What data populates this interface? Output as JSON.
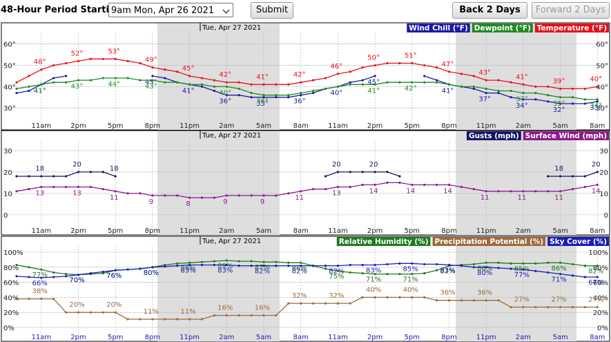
{
  "header": {
    "period_label": "48-Hour Period Starting:",
    "period_value": "9am Mon, Apr 26 2021",
    "submit": "Submit",
    "back": "Back 2 Days",
    "forward": "Forward 2 Days"
  },
  "chart_data": [
    {
      "type": "line",
      "date_label": "Tue, Apr 27 2021",
      "categories": [
        null,
        null,
        "11am",
        null,
        null,
        "2pm",
        null,
        null,
        "5pm",
        null,
        null,
        "8pm",
        null,
        null,
        "11pm",
        null,
        null,
        "2am",
        null,
        null,
        "5am",
        null,
        null,
        "8am",
        null,
        null,
        "11am",
        null,
        null,
        "2pm",
        null,
        null,
        "5pm",
        null,
        null,
        "8pm",
        null,
        null,
        "11pm",
        null,
        null,
        "2am",
        null,
        null,
        "5am",
        null,
        null,
        "8am"
      ],
      "ylim": [
        20,
        69
      ],
      "yticks": [
        {
          "value": 30,
          "label": "30°"
        },
        {
          "value": 40,
          "label": "40°"
        },
        {
          "value": 50,
          "label": "50°"
        },
        {
          "value": 60,
          "label": "60°"
        }
      ],
      "series": [
        {
          "name": "Wind Chill (°F)",
          "color": "#1a1aa6",
          "values": [
            37,
            38,
            41,
            44,
            45,
            null,
            null,
            null,
            null,
            null,
            null,
            45,
            44,
            42,
            41,
            40,
            38,
            36,
            36,
            35,
            35,
            35,
            35,
            36,
            37,
            39,
            40,
            42,
            43,
            45,
            null,
            null,
            null,
            45,
            43,
            41,
            40,
            39,
            37,
            37,
            35,
            34,
            34,
            33,
            32,
            32,
            32,
            33
          ],
          "value_labels": [
            null,
            null,
            "41°",
            null,
            null,
            null,
            null,
            null,
            null,
            null,
            null,
            "45°",
            null,
            null,
            "41°",
            null,
            null,
            "36°",
            null,
            null,
            "35°",
            null,
            null,
            "36°",
            null,
            null,
            "40°",
            null,
            null,
            "45°",
            null,
            null,
            null,
            null,
            null,
            "41°",
            null,
            null,
            "37°",
            null,
            null,
            "34°",
            null,
            null,
            "32°",
            null,
            null,
            "33°"
          ]
        },
        {
          "name": "Dewpoint (°F)",
          "color": "#1f8a1f",
          "values": [
            39,
            40,
            41,
            42,
            42,
            43,
            43,
            44,
            44,
            44,
            43,
            43,
            42,
            42,
            41,
            41,
            40,
            40,
            39,
            37,
            36,
            36,
            36,
            37,
            38,
            39,
            40,
            41,
            41,
            41,
            42,
            42,
            42,
            42,
            42,
            41,
            40,
            40,
            39,
            38,
            38,
            37,
            37,
            36,
            35,
            35,
            34,
            34
          ],
          "value_labels": [
            null,
            null,
            "41°",
            null,
            null,
            "43°",
            null,
            null,
            "44°",
            null,
            null,
            "43°",
            null,
            null,
            null,
            null,
            null,
            "40°",
            null,
            null,
            "36°",
            null,
            null,
            null,
            null,
            null,
            null,
            null,
            null,
            "41°",
            null,
            null,
            "42°",
            null,
            null,
            null,
            null,
            null,
            null,
            null,
            null,
            "37°",
            null,
            null,
            "35°",
            null,
            null,
            "34°"
          ]
        },
        {
          "name": "Temperature (°F)",
          "color": "#e8101a",
          "values": [
            42,
            45,
            48,
            50,
            51,
            52,
            53,
            53,
            53,
            52,
            51,
            49,
            48,
            47,
            45,
            44,
            43,
            42,
            42,
            41,
            41,
            41,
            41,
            42,
            43,
            44,
            46,
            47,
            49,
            50,
            51,
            51,
            51,
            50,
            49,
            47,
            46,
            45,
            43,
            43,
            42,
            41,
            40,
            40,
            39,
            39,
            39,
            40
          ],
          "value_labels": [
            null,
            null,
            "48°",
            null,
            null,
            "52°",
            null,
            null,
            "53°",
            null,
            null,
            "49°",
            null,
            null,
            "45°",
            null,
            null,
            "42°",
            null,
            null,
            "41°",
            null,
            null,
            "42°",
            null,
            null,
            "46°",
            null,
            null,
            "50°",
            null,
            null,
            "51°",
            null,
            null,
            "47°",
            null,
            null,
            "43°",
            null,
            null,
            "41°",
            null,
            null,
            "39°",
            null,
            null,
            "40°"
          ]
        }
      ]
    },
    {
      "type": "line",
      "date_label": "Tue, Apr 27 2021",
      "categories": [
        null,
        null,
        "11am",
        null,
        null,
        "2pm",
        null,
        null,
        "5pm",
        null,
        null,
        "8pm",
        null,
        null,
        "11pm",
        null,
        null,
        "2am",
        null,
        null,
        "5am",
        null,
        null,
        "8am",
        null,
        null,
        "11am",
        null,
        null,
        "2pm",
        null,
        null,
        "5pm",
        null,
        null,
        "8pm",
        null,
        null,
        "11pm",
        null,
        null,
        "2am",
        null,
        null,
        "5am",
        null,
        null,
        "8am"
      ],
      "ylim": [
        -9.4,
        37.4
      ],
      "yticks": [
        0,
        10,
        20,
        30
      ],
      "series": [
        {
          "name": "Gusts (mph)",
          "color": "#141466",
          "values": [
            18,
            18,
            18,
            18,
            18,
            20,
            20,
            20,
            18,
            null,
            null,
            null,
            null,
            null,
            null,
            null,
            null,
            null,
            null,
            null,
            null,
            null,
            null,
            null,
            null,
            18,
            20,
            20,
            20,
            20,
            20,
            18,
            null,
            null,
            null,
            null,
            null,
            null,
            null,
            null,
            null,
            null,
            null,
            18,
            18,
            18,
            18,
            20
          ]
        },
        {
          "name": "Surface Wind (mph)",
          "color": "#8b1a8b",
          "values": [
            11,
            12,
            13,
            13,
            13,
            13,
            13,
            12,
            11,
            10,
            10,
            9,
            9,
            9,
            8,
            8,
            8,
            9,
            9,
            9,
            9,
            9,
            10,
            11,
            12,
            12,
            13,
            13,
            14,
            14,
            15,
            15,
            14,
            14,
            14,
            14,
            13,
            12,
            11,
            11,
            11,
            11,
            11,
            11,
            11,
            12,
            13,
            14
          ]
        }
      ]
    },
    {
      "type": "line",
      "date_label": "Tue, Apr 27 2021",
      "categories": [
        null,
        null,
        "11am",
        null,
        null,
        "2pm",
        null,
        null,
        "5pm",
        null,
        null,
        "8pm",
        null,
        null,
        "11pm",
        null,
        null,
        "2am",
        null,
        null,
        "5am",
        null,
        null,
        "8am",
        null,
        null,
        "11am",
        null,
        null,
        "2pm",
        null,
        null,
        "5pm",
        null,
        null,
        "8pm",
        null,
        null,
        "11pm",
        null,
        null,
        "2am",
        null,
        null,
        "5am",
        null,
        null,
        "8am"
      ],
      "ylim": [
        -19.3,
        115.6
      ],
      "yticks": [
        {
          "value": 0,
          "label": "0%"
        },
        {
          "value": 20,
          "label": "20%"
        },
        {
          "value": 40,
          "label": "40%"
        },
        {
          "value": 60,
          "label": "60%"
        },
        {
          "value": 80,
          "label": "80%"
        },
        {
          "value": 100,
          "label": "100%"
        }
      ],
      "series": [
        {
          "name": "Relative Humidity (%)",
          "color": "#1f7a1f",
          "values": [
            83,
            80,
            77,
            73,
            71,
            70,
            71,
            72,
            76,
            77,
            78,
            80,
            83,
            85,
            86,
            87,
            88,
            89,
            88,
            88,
            87,
            87,
            86,
            86,
            82,
            78,
            75,
            73,
            72,
            71,
            71,
            71,
            71,
            72,
            76,
            82,
            83,
            84,
            86,
            86,
            85,
            85,
            85,
            86,
            86,
            84,
            82,
            82
          ],
          "value_labels": [
            null,
            null,
            "77%",
            null,
            null,
            "70%",
            null,
            null,
            "76%",
            null,
            null,
            "80%",
            null,
            null,
            "86%",
            null,
            null,
            "89%",
            null,
            null,
            "87%",
            null,
            null,
            "86%",
            null,
            null,
            "75%",
            null,
            null,
            "71%",
            null,
            null,
            "71%",
            null,
            null,
            "82%",
            null,
            null,
            "86%",
            null,
            null,
            "85%",
            null,
            null,
            "86%",
            null,
            null,
            "82%"
          ]
        },
        {
          "name": "Precipitation Potential (%)",
          "color": "#9c6a3c",
          "values": [
            38,
            38,
            38,
            38,
            20,
            20,
            20,
            20,
            20,
            11,
            11,
            11,
            11,
            11,
            11,
            11,
            16,
            16,
            16,
            16,
            16,
            16,
            32,
            32,
            32,
            32,
            32,
            32,
            40,
            40,
            40,
            40,
            40,
            40,
            36,
            36,
            36,
            36,
            36,
            36,
            27,
            27,
            27,
            27,
            27,
            27,
            27,
            27
          ],
          "value_labels": [
            null,
            null,
            "38%",
            null,
            null,
            "20%",
            null,
            null,
            "20%",
            null,
            null,
            "11%",
            null,
            null,
            "11%",
            null,
            null,
            "16%",
            null,
            null,
            "16%",
            null,
            null,
            "32%",
            null,
            null,
            "32%",
            null,
            null,
            "40%",
            null,
            null,
            "40%",
            null,
            null,
            "36%",
            null,
            null,
            "36%",
            null,
            null,
            "27%",
            null,
            null,
            "27%",
            null,
            null,
            "27%"
          ]
        },
        {
          "name": "Sky Cover (%)",
          "color": "#1c1cb4",
          "values": [
            68,
            67,
            66,
            67,
            68,
            70,
            72,
            74,
            76,
            77,
            78,
            80,
            81,
            82,
            83,
            83,
            83,
            83,
            82,
            82,
            82,
            82,
            82,
            82,
            82,
            82,
            82,
            83,
            83,
            83,
            84,
            85,
            85,
            84,
            84,
            83,
            82,
            80,
            80,
            79,
            78,
            77,
            75,
            73,
            71,
            69,
            67,
            67
          ],
          "value_labels": [
            null,
            null,
            "66%",
            null,
            null,
            "70%",
            null,
            null,
            "76%",
            null,
            null,
            "80%",
            null,
            null,
            "83%",
            null,
            null,
            "83%",
            null,
            null,
            "82%",
            null,
            null,
            "82%",
            null,
            null,
            "82%",
            null,
            null,
            "83%",
            null,
            null,
            "85%",
            null,
            null,
            "83%",
            null,
            null,
            "80%",
            null,
            null,
            "77%",
            null,
            null,
            "71%",
            null,
            null,
            "67%"
          ]
        }
      ]
    }
  ]
}
